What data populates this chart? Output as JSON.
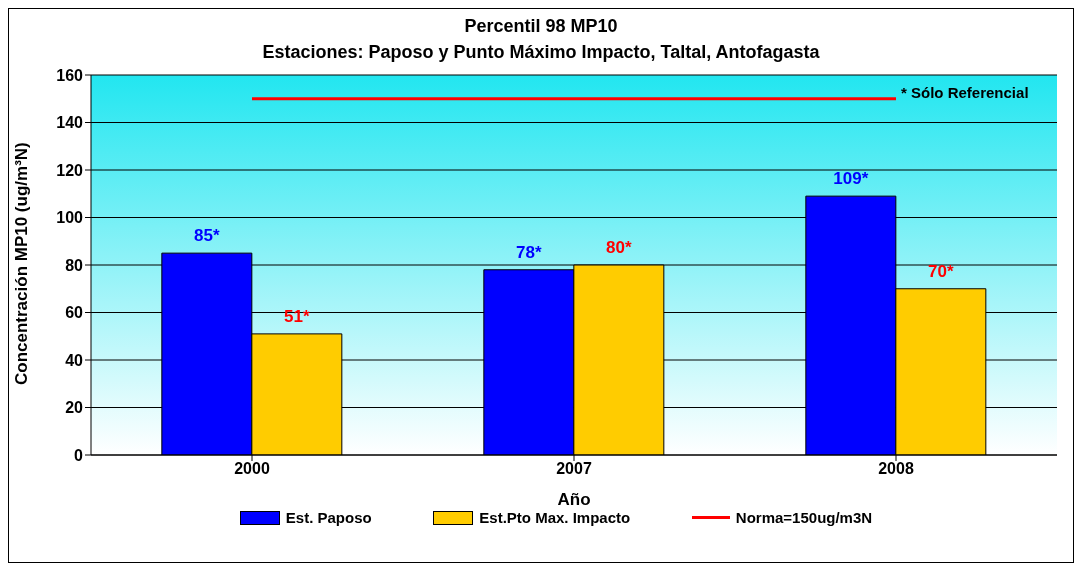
{
  "chart_data": {
    "type": "bar",
    "title": "Percentil 98 MP10",
    "subtitle": "Estaciones: Paposo y Punto Máximo Impacto, Taltal, Antofagasta",
    "xlabel": "Año",
    "ylabel": "Concentración MP10 (ug/m³N)",
    "categories": [
      "2000",
      "2007",
      "2008"
    ],
    "series": [
      {
        "name": "Est. Paposo",
        "color": "#0000ff",
        "values": [
          85,
          78,
          109
        ],
        "value_labels": [
          "85*",
          "78*",
          "109*"
        ]
      },
      {
        "name": "Est.Pto Max. Impacto",
        "color": "#ffcc00",
        "values": [
          51,
          80,
          70
        ],
        "value_labels": [
          "51*",
          "80*",
          "70*"
        ]
      }
    ],
    "ref_lines": [
      {
        "axis": "y",
        "value": 150,
        "label": "Norma=150ug/m3N",
        "color": "#ff0000"
      }
    ],
    "annotations": [
      "* Sólo Referencial"
    ],
    "ylim": [
      0,
      160
    ],
    "yticks": [
      0,
      20,
      40,
      60,
      80,
      100,
      120,
      140,
      160
    ],
    "grid": "y",
    "legend": "bottom"
  }
}
